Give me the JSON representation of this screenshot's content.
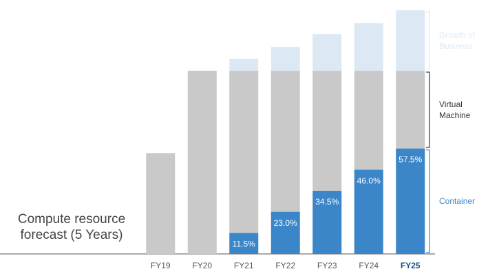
{
  "chart_data": {
    "type": "stacked-bar",
    "title": "Compute resource forecast (5 Years)",
    "categories": [
      "FY19",
      "FY20",
      "FY21",
      "FY22",
      "FY23",
      "FY24",
      "FY25"
    ],
    "highlight_index": 6,
    "series": [
      {
        "name": "Container",
        "color": "#3b86c9",
        "values": [
          null,
          null,
          11.5,
          23,
          34.5,
          46,
          57.5
        ],
        "value_labels": [
          null,
          null,
          "11.5%",
          "23.0%",
          "34.5%",
          "46.0%",
          "57.5%"
        ]
      },
      {
        "name": "Virtual Machine",
        "color": "#c9c9c9",
        "values": [
          55,
          100,
          88.5,
          77,
          65.5,
          54,
          42.5
        ]
      },
      {
        "name": "Growth of Business",
        "color": "#dce9f5",
        "values": [
          null,
          null,
          6.5,
          13,
          20,
          26,
          33
        ]
      }
    ],
    "ylim": [
      0,
      133
    ]
  }
}
